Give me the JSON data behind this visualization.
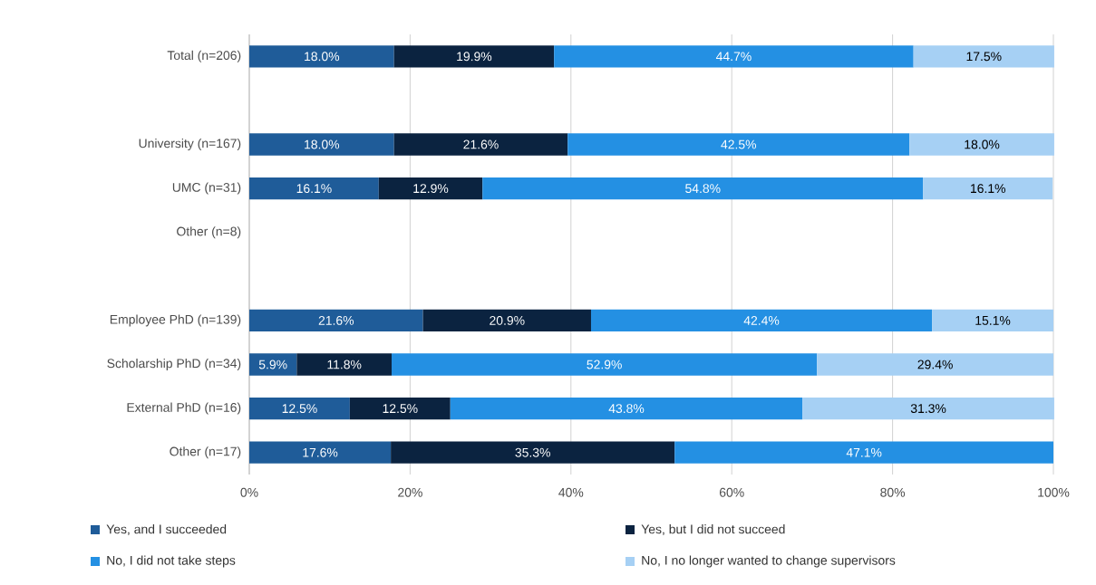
{
  "chart_data": {
    "type": "bar",
    "orientation": "horizontal",
    "stacked": true,
    "grid": "x",
    "legend": "bottom",
    "categories": [
      "Total (n=206)",
      null,
      "University (n=167)",
      "UMC (n=31)",
      "Other (n=8)",
      null,
      "Employee PhD (n=139)",
      "Scholarship PhD (n=34)",
      "External PhD (n=16)",
      "Other (n=17)"
    ],
    "xlim": [
      0,
      100
    ],
    "xticks": [
      {
        "value": 0,
        "label": "0%"
      },
      {
        "value": 20,
        "label": "20%"
      },
      {
        "value": 40,
        "label": "40%"
      },
      {
        "value": 60,
        "label": "60%"
      },
      {
        "value": 80,
        "label": "80%"
      },
      {
        "value": 100,
        "label": "100%"
      }
    ],
    "series": [
      {
        "name": "Yes, and I succeeded",
        "color": "#1f5c99",
        "values": [
          18.0,
          null,
          18.0,
          16.1,
          null,
          null,
          21.6,
          5.9,
          12.5,
          17.6
        ],
        "value_labels": [
          "18.0%",
          null,
          "18.0%",
          "16.1%",
          null,
          null,
          "21.6%",
          "5.9%",
          "12.5%",
          "17.6%"
        ]
      },
      {
        "name": "Yes, but I did not succeed",
        "color": "#0b2340",
        "values": [
          19.9,
          null,
          21.6,
          12.9,
          null,
          null,
          20.9,
          11.8,
          12.5,
          35.3
        ],
        "value_labels": [
          "19.9%",
          null,
          "21.6%",
          "12.9%",
          null,
          null,
          "20.9%",
          "11.8%",
          "12.5%",
          "35.3%"
        ]
      },
      {
        "name": "No, I did not take steps",
        "color": "#2490e3",
        "values": [
          44.7,
          null,
          42.5,
          54.8,
          null,
          null,
          42.4,
          52.9,
          43.8,
          47.1
        ],
        "value_labels": [
          "44.7%",
          null,
          "42.5%",
          "54.8%",
          null,
          null,
          "42.4%",
          "52.9%",
          "43.8%",
          "47.1%"
        ]
      },
      {
        "name": "No, I no longer wanted to change supervisors",
        "color": "#a6d0f4",
        "values": [
          17.5,
          null,
          18.0,
          16.1,
          null,
          null,
          15.1,
          29.4,
          31.3,
          null
        ],
        "value_labels": [
          "17.5%",
          null,
          "18.0%",
          "16.1%",
          null,
          null,
          "15.1%",
          "29.4%",
          "31.3%",
          null
        ]
      }
    ]
  }
}
